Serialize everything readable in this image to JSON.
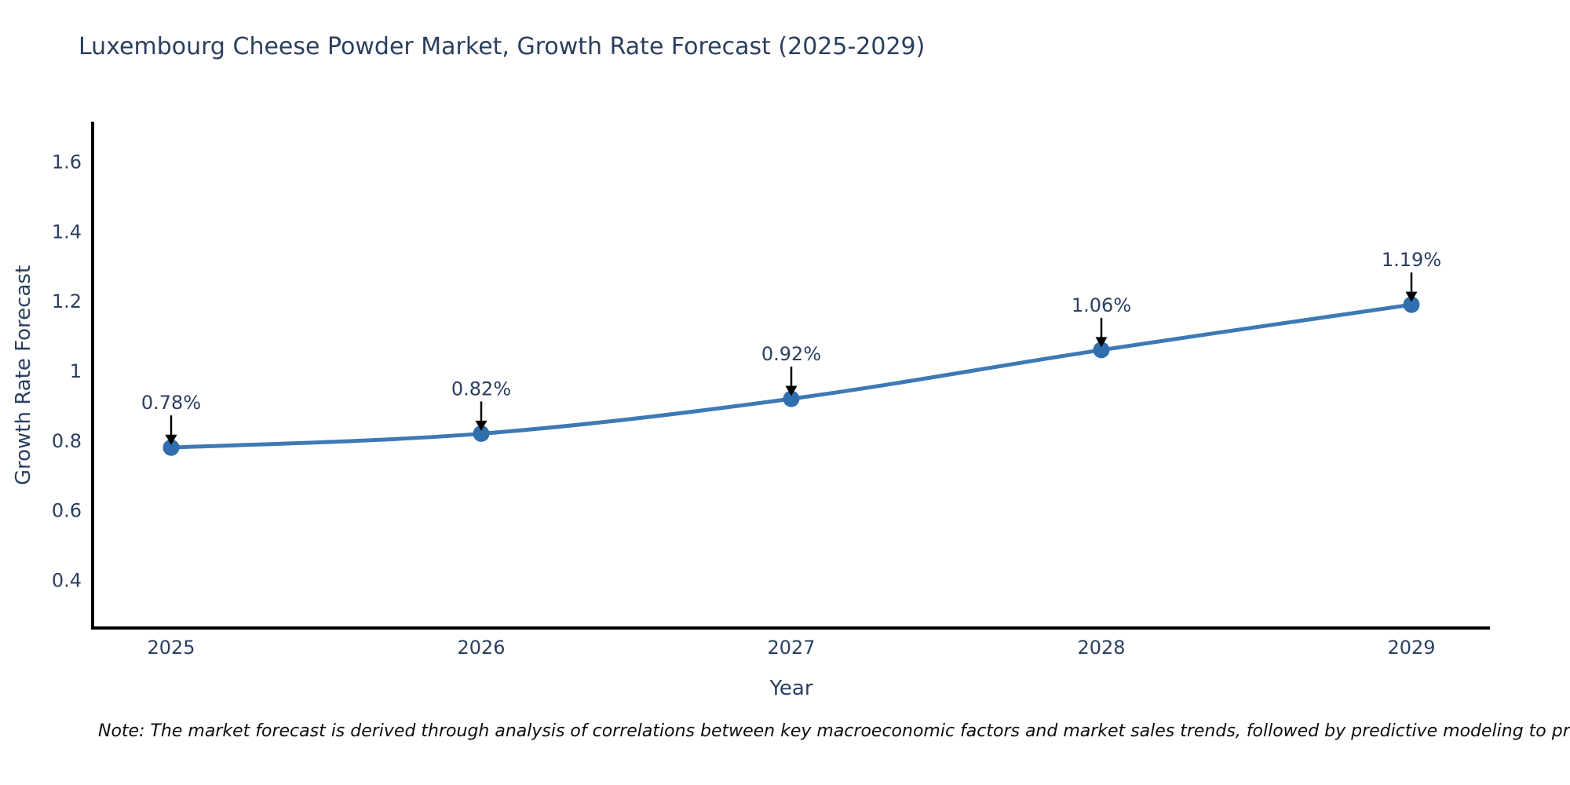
{
  "title": "Luxembourg Cheese Powder Market, Growth Rate Forecast (2025-2029)",
  "note": "Note: The market forecast is derived through analysis of correlations between key macroeconomic factors and market sales trends, followed by predictive modeling to project future sales",
  "chart_data": {
    "type": "line",
    "title": "Luxembourg Cheese Powder Market, Growth Rate Forecast (2025-2029)",
    "categories": [
      "2025",
      "2026",
      "2027",
      "2028",
      "2029"
    ],
    "x": [
      2025,
      2026,
      2027,
      2028,
      2029
    ],
    "values": [
      0.78,
      0.82,
      0.92,
      1.06,
      1.19
    ],
    "point_labels": [
      "0.78%",
      "0.82%",
      "0.92%",
      "1.06%",
      "1.19%"
    ],
    "xlabel": "Year",
    "ylabel": "Growth Rate Forecast",
    "y_ticks": [
      0.4,
      0.6,
      0.8,
      1.0,
      1.2,
      1.4,
      1.6
    ],
    "y_tick_labels": [
      "0.4",
      "0.6",
      "0.8",
      "1",
      "1.2",
      "1.4",
      "1.6"
    ],
    "ylim": [
      0.2625,
      1.715
    ],
    "grid": false,
    "legend": "none",
    "line_shape": "spline",
    "line_color": "#3d7ab5",
    "marker_color": "#2f6fae",
    "axis_color": "#000000",
    "annotation_arrow_color": "#000000",
    "text_color": "#2a3f5f"
  }
}
